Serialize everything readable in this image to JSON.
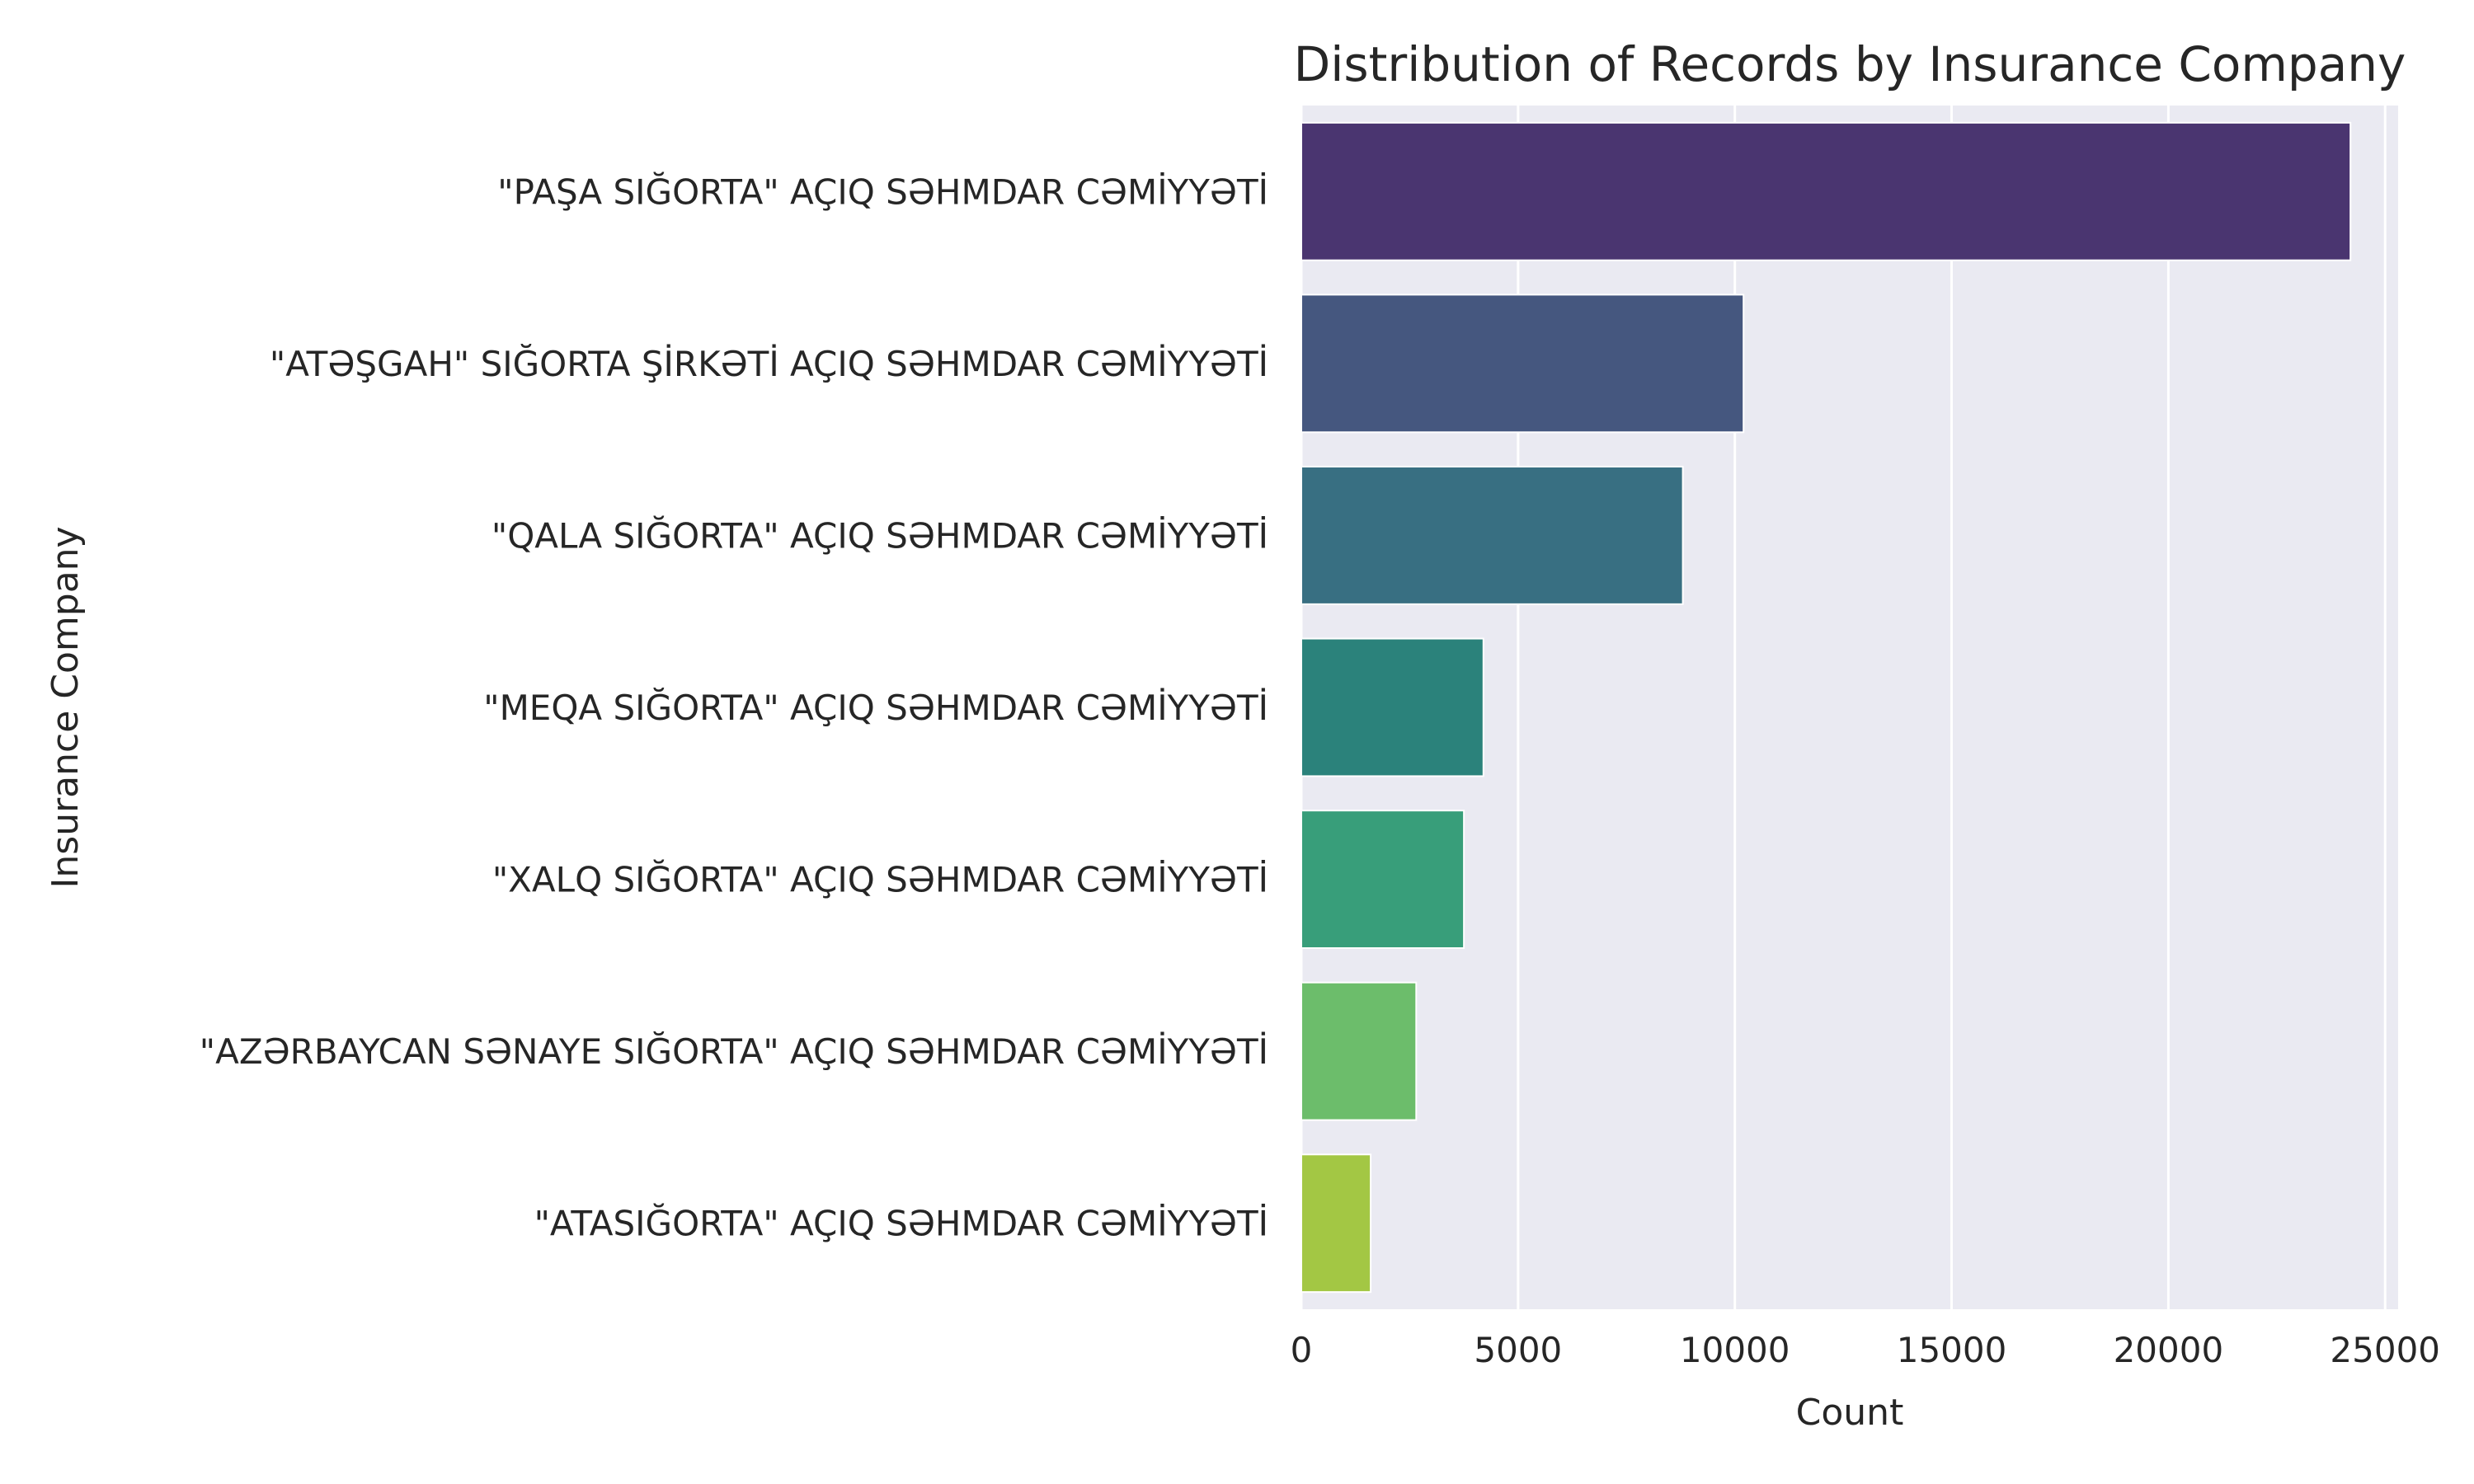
{
  "chart_data": {
    "type": "bar",
    "orientation": "horizontal",
    "title": "Distribution of Records by Insurance Company",
    "xlabel": "Count",
    "ylabel": "Insurance Company",
    "xlim": [
      0,
      25300
    ],
    "xticks": [
      "0",
      "5000",
      "10000",
      "15000",
      "20000",
      "25000"
    ],
    "grid": true,
    "categories": [
      "\"PAŞA SIĞORTA\" AÇIQ SƏHMDAR CƏMİYYƏTİ",
      "\"ATƏŞGAH\" SIĞORTA ŞİRKƏTİ AÇIQ SƏHMDAR CƏMİYYƏTİ",
      "\"QALA SIĞORTA\" AÇIQ SƏHMDAR CƏMİYYƏTİ",
      "\"MEQA SIĞORTA\" AÇIQ SƏHMDAR CƏMİYYƏTİ",
      "\"XALQ SIĞORTA\" AÇIQ SƏHMDAR CƏMİYYƏTİ",
      "\"AZƏRBAYCAN SƏNAYE SIĞORTA\" AÇIQ SƏHMDAR CƏMİYYƏTİ",
      "\"ATASIĞORTA\" AÇIQ SƏHMDAR CƏMİYYƏTİ"
    ],
    "values": [
      24200,
      10200,
      8800,
      4200,
      3750,
      2650,
      1600
    ],
    "colors": [
      "#4a3570",
      "#45577f",
      "#386f82",
      "#2b827b",
      "#389e7a",
      "#6cbd6b",
      "#a3c744"
    ],
    "background": "#eaeaf2"
  }
}
